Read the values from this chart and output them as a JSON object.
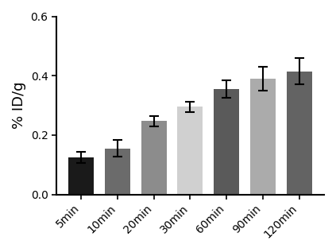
{
  "categories": [
    "5min",
    "10min",
    "20min",
    "30min",
    "60min",
    "90min",
    "120min"
  ],
  "values": [
    0.125,
    0.155,
    0.247,
    0.295,
    0.355,
    0.39,
    0.415
  ],
  "errors": [
    0.018,
    0.028,
    0.018,
    0.018,
    0.03,
    0.04,
    0.045
  ],
  "bar_colors": [
    "#1a1a1a",
    "#6b6b6b",
    "#8c8c8c",
    "#d0d0d0",
    "#5a5a5a",
    "#ababab",
    "#636363"
  ],
  "ylabel": "% ID/g",
  "ylim": [
    0,
    0.6
  ],
  "yticks": [
    0.0,
    0.2,
    0.4,
    0.6
  ],
  "background_color": "#ffffff",
  "bar_width": 0.7,
  "capsize": 4,
  "ecolor": "#000000",
  "elinewidth": 1.5,
  "ylabel_fontsize": 13,
  "tick_fontsize": 10
}
